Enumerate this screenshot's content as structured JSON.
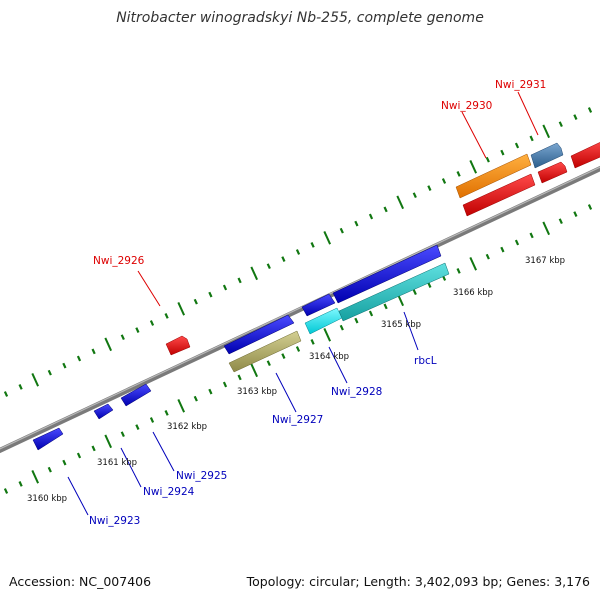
{
  "title": "Nitrobacter winogradskyi Nb-255, complete genome",
  "footer": {
    "accession": "Accession: NC_007406",
    "summary": "Topology: circular; Length: 3,402,093 bp; Genes: 3,176"
  },
  "scale_labels": [
    "3160 kbp",
    "3161 kbp",
    "3162 kbp",
    "3163 kbp",
    "3164 kbp",
    "3165 kbp",
    "3166 kbp",
    "3167 kbp"
  ],
  "gene_labels": {
    "top_strand": [
      "Nwi_2926",
      "Nwi_2930",
      "Nwi_2931"
    ],
    "bottom_strand": [
      "Nwi_2923",
      "Nwi_2924",
      "Nwi_2925",
      "Nwi_2927",
      "Nwi_2928",
      "rbcL"
    ]
  },
  "colors": {
    "top_label": "#dd0000",
    "bottom_label": "#0000bb",
    "blue_gene": "#0a0ae6",
    "red_gene": "#f21010",
    "orange_gene": "#ff8c00",
    "steelblue_gene": "#4682b4",
    "cyan_gene": "#00e0e8",
    "teal_gene": "#27c6c6",
    "olive_gene": "#b5b06a",
    "backbone": "#7a7a7a",
    "tick": "#117711"
  }
}
